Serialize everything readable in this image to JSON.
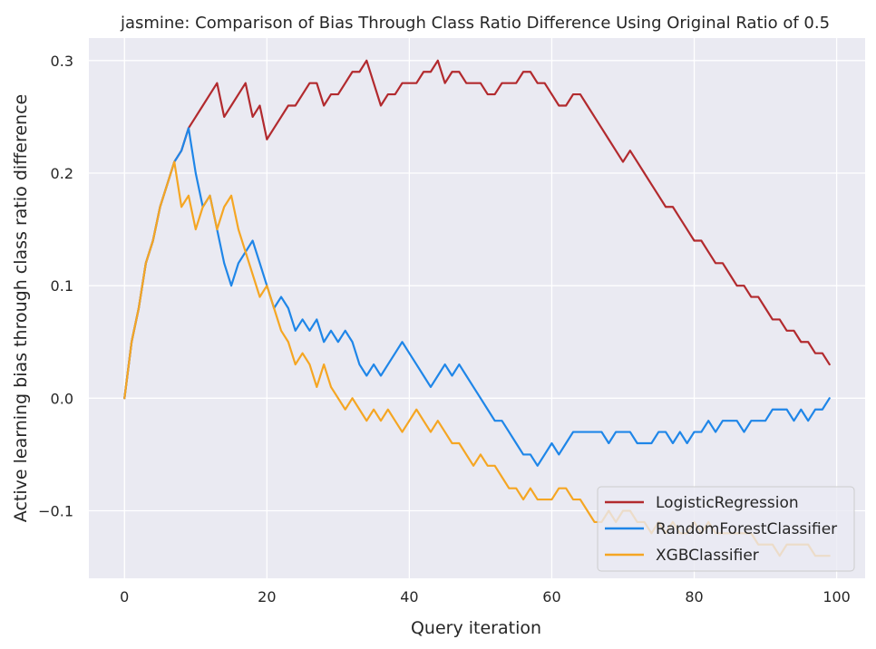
{
  "chart_data": {
    "type": "line",
    "title": "jasmine: Comparison of Bias Through Class Ratio Difference Using Original Ratio of 0.5",
    "xlabel": "Query iteration",
    "ylabel": "Active learning bias through class ratio difference",
    "xlim": [
      -5,
      104
    ],
    "ylim": [
      -0.16,
      0.32
    ],
    "xticks": [
      0,
      20,
      40,
      60,
      80,
      100
    ],
    "yticks": [
      -0.1,
      0.0,
      0.1,
      0.2,
      0.3
    ],
    "xtick_labels": [
      "0",
      "20",
      "40",
      "60",
      "80",
      "100"
    ],
    "ytick_labels": [
      "−0.1",
      "0.0",
      "0.1",
      "0.2",
      "0.3"
    ],
    "grid": true,
    "background": "#eaeaf2",
    "legend_position": "lower-right",
    "x": [
      0,
      1,
      2,
      3,
      4,
      5,
      6,
      7,
      8,
      9,
      10,
      11,
      12,
      13,
      14,
      15,
      16,
      17,
      18,
      19,
      20,
      21,
      22,
      23,
      24,
      25,
      26,
      27,
      28,
      29,
      30,
      31,
      32,
      33,
      34,
      35,
      36,
      37,
      38,
      39,
      40,
      41,
      42,
      43,
      44,
      45,
      46,
      47,
      48,
      49,
      50,
      51,
      52,
      53,
      54,
      55,
      56,
      57,
      58,
      59,
      60,
      61,
      62,
      63,
      64,
      65,
      66,
      67,
      68,
      69,
      70,
      71,
      72,
      73,
      74,
      75,
      76,
      77,
      78,
      79,
      80,
      81,
      82,
      83,
      84,
      85,
      86,
      87,
      88,
      89,
      90,
      91,
      92,
      93,
      94,
      95,
      96,
      97,
      98,
      99
    ],
    "series": [
      {
        "name": "LogisticRegression",
        "color": "#b22a2e",
        "values": [
          0.0,
          0.05,
          0.08,
          0.12,
          0.14,
          0.17,
          0.19,
          0.21,
          0.22,
          0.24,
          0.25,
          0.26,
          0.27,
          0.28,
          0.25,
          0.26,
          0.27,
          0.28,
          0.25,
          0.26,
          0.23,
          0.24,
          0.25,
          0.26,
          0.26,
          0.27,
          0.28,
          0.28,
          0.26,
          0.27,
          0.27,
          0.28,
          0.29,
          0.29,
          0.3,
          0.28,
          0.26,
          0.27,
          0.27,
          0.28,
          0.28,
          0.28,
          0.29,
          0.29,
          0.3,
          0.28,
          0.29,
          0.29,
          0.28,
          0.28,
          0.28,
          0.27,
          0.27,
          0.28,
          0.28,
          0.28,
          0.29,
          0.29,
          0.28,
          0.28,
          0.27,
          0.26,
          0.26,
          0.27,
          0.27,
          0.26,
          0.25,
          0.24,
          0.23,
          0.22,
          0.21,
          0.22,
          0.21,
          0.2,
          0.19,
          0.18,
          0.17,
          0.17,
          0.16,
          0.15,
          0.14,
          0.14,
          0.13,
          0.12,
          0.12,
          0.11,
          0.1,
          0.1,
          0.09,
          0.09,
          0.08,
          0.07,
          0.07,
          0.06,
          0.06,
          0.05,
          0.05,
          0.04,
          0.04,
          0.03
        ]
      },
      {
        "name": "RandomForestClassifier",
        "color": "#1f86e8",
        "values": [
          0.0,
          0.05,
          0.08,
          0.12,
          0.14,
          0.17,
          0.19,
          0.21,
          0.22,
          0.24,
          0.2,
          0.17,
          0.18,
          0.15,
          0.12,
          0.1,
          0.12,
          0.13,
          0.14,
          0.12,
          0.1,
          0.08,
          0.09,
          0.08,
          0.06,
          0.07,
          0.06,
          0.07,
          0.05,
          0.06,
          0.05,
          0.06,
          0.05,
          0.03,
          0.02,
          0.03,
          0.02,
          0.03,
          0.04,
          0.05,
          0.04,
          0.03,
          0.02,
          0.01,
          0.02,
          0.03,
          0.02,
          0.03,
          0.02,
          0.01,
          0.0,
          -0.01,
          -0.02,
          -0.02,
          -0.03,
          -0.04,
          -0.05,
          -0.05,
          -0.06,
          -0.05,
          -0.04,
          -0.05,
          -0.04,
          -0.03,
          -0.03,
          -0.03,
          -0.03,
          -0.03,
          -0.04,
          -0.03,
          -0.03,
          -0.03,
          -0.04,
          -0.04,
          -0.04,
          -0.03,
          -0.03,
          -0.04,
          -0.03,
          -0.04,
          -0.03,
          -0.03,
          -0.02,
          -0.03,
          -0.02,
          -0.02,
          -0.02,
          -0.03,
          -0.02,
          -0.02,
          -0.02,
          -0.01,
          -0.01,
          -0.01,
          -0.02,
          -0.01,
          -0.02,
          -0.01,
          -0.01,
          0.0
        ]
      },
      {
        "name": "XGBClassifier",
        "color": "#f5a623",
        "values": [
          0.0,
          0.05,
          0.08,
          0.12,
          0.14,
          0.17,
          0.19,
          0.21,
          0.17,
          0.18,
          0.15,
          0.17,
          0.18,
          0.15,
          0.17,
          0.18,
          0.15,
          0.13,
          0.11,
          0.09,
          0.1,
          0.08,
          0.06,
          0.05,
          0.03,
          0.04,
          0.03,
          0.01,
          0.03,
          0.01,
          0.0,
          -0.01,
          0.0,
          -0.01,
          -0.02,
          -0.01,
          -0.02,
          -0.01,
          -0.02,
          -0.03,
          -0.02,
          -0.01,
          -0.02,
          -0.03,
          -0.02,
          -0.03,
          -0.04,
          -0.04,
          -0.05,
          -0.06,
          -0.05,
          -0.06,
          -0.06,
          -0.07,
          -0.08,
          -0.08,
          -0.09,
          -0.08,
          -0.09,
          -0.09,
          -0.09,
          -0.08,
          -0.08,
          -0.09,
          -0.09,
          -0.1,
          -0.11,
          -0.11,
          -0.1,
          -0.11,
          -0.1,
          -0.1,
          -0.11,
          -0.11,
          -0.12,
          -0.11,
          -0.12,
          -0.11,
          -0.12,
          -0.12,
          -0.11,
          -0.12,
          -0.11,
          -0.12,
          -0.12,
          -0.12,
          -0.12,
          -0.12,
          -0.12,
          -0.13,
          -0.13,
          -0.13,
          -0.14,
          -0.13,
          -0.13,
          -0.13,
          -0.13,
          -0.14,
          -0.14,
          -0.14
        ]
      }
    ]
  }
}
